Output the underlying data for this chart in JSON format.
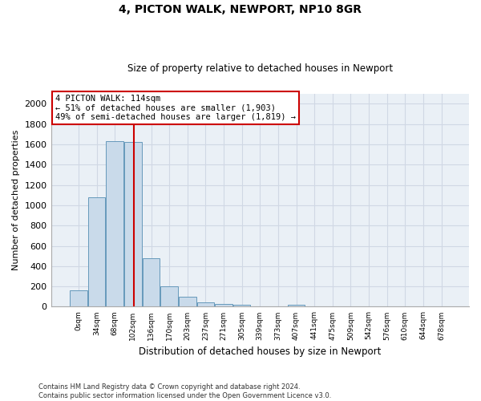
{
  "title": "4, PICTON WALK, NEWPORT, NP10 8GR",
  "subtitle": "Size of property relative to detached houses in Newport",
  "xlabel": "Distribution of detached houses by size in Newport",
  "ylabel": "Number of detached properties",
  "bar_color": "#c9daea",
  "bar_edge_color": "#6699bb",
  "grid_color": "#d0d8e4",
  "bg_color": "#eaf0f6",
  "annotation_text": "4 PICTON WALK: 114sqm\n← 51% of detached houses are smaller (1,903)\n49% of semi-detached houses are larger (1,819) →",
  "annotation_box_color": "#ffffff",
  "annotation_border_color": "#cc0000",
  "vline_color": "#cc0000",
  "vline_x": 3.05,
  "footer": "Contains HM Land Registry data © Crown copyright and database right 2024.\nContains public sector information licensed under the Open Government Licence v3.0.",
  "categories": [
    "0sqm",
    "34sqm",
    "68sqm",
    "102sqm",
    "136sqm",
    "170sqm",
    "203sqm",
    "237sqm",
    "271sqm",
    "305sqm",
    "339sqm",
    "373sqm",
    "407sqm",
    "441sqm",
    "475sqm",
    "509sqm",
    "542sqm",
    "576sqm",
    "610sqm",
    "644sqm",
    "678sqm"
  ],
  "values": [
    160,
    1080,
    1630,
    1620,
    480,
    200,
    100,
    45,
    28,
    18,
    0,
    0,
    18,
    0,
    0,
    0,
    0,
    0,
    0,
    0,
    0
  ],
  "ylim": [
    0,
    2100
  ],
  "yticks": [
    0,
    200,
    400,
    600,
    800,
    1000,
    1200,
    1400,
    1600,
    1800,
    2000
  ]
}
